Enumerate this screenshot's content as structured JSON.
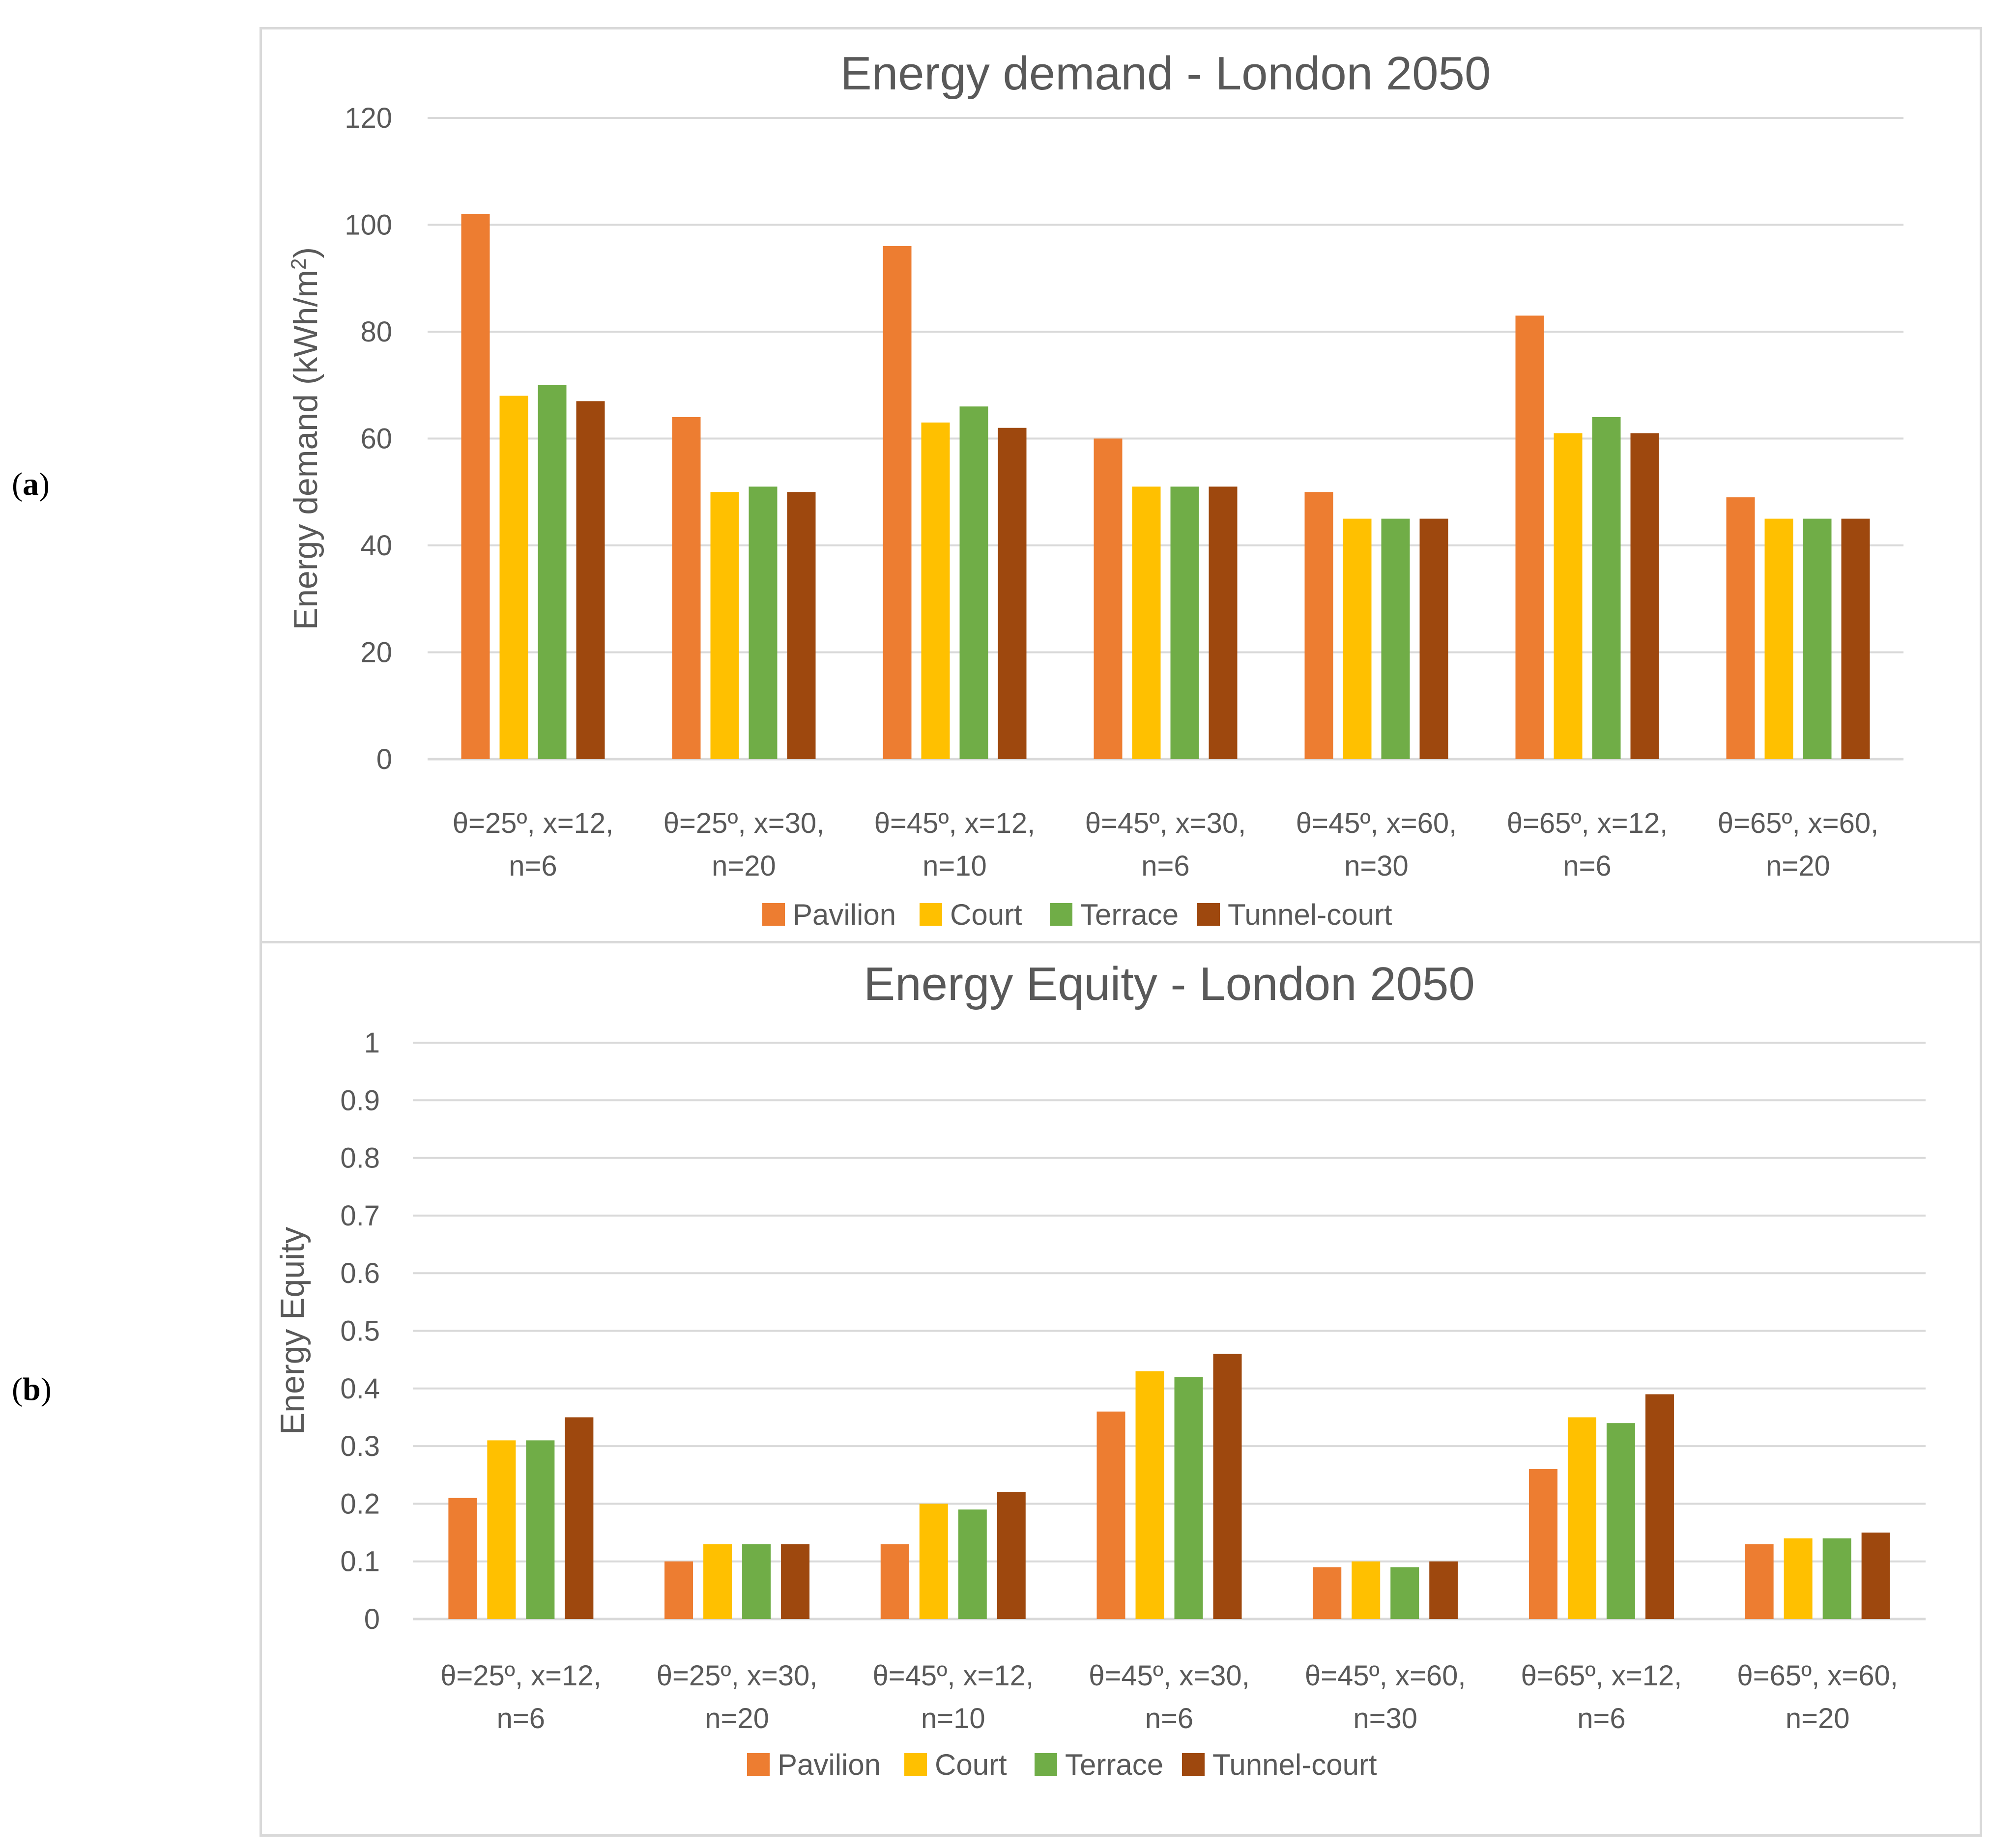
{
  "panels": [
    {
      "label": "a"
    },
    {
      "label": "b"
    }
  ],
  "colors": {
    "Pavilion": "#ed7d31",
    "Court": "#ffc000",
    "Terrace": "#70ad47",
    "Tunnel-court": "#9e480e",
    "grid": "#d9d9d9",
    "text": "#595959"
  },
  "chart_data": [
    {
      "type": "bar",
      "title": "Energy demand - London 2050",
      "xlabel": "",
      "ylabel": "Energy demand (kWh/m",
      "ylabel_sup": "2",
      "ylabel_close": ")",
      "ylim": [
        0,
        120
      ],
      "yticks": [
        "0",
        "20",
        "40",
        "60",
        "80",
        "100",
        "120"
      ],
      "categories": [
        [
          "θ=25º, x=12,",
          "n=6"
        ],
        [
          "θ=25º, x=30,",
          "n=20"
        ],
        [
          "θ=45º, x=12,",
          "n=10"
        ],
        [
          "θ=45º, x=30,",
          "n=6"
        ],
        [
          "θ=45º, x=60,",
          "n=30"
        ],
        [
          "θ=65º, x=12,",
          "n=6"
        ],
        [
          "θ=65º, x=60,",
          "n=20"
        ]
      ],
      "series": [
        {
          "name": "Pavilion",
          "values": [
            102,
            64,
            96,
            60,
            50,
            83,
            49
          ]
        },
        {
          "name": "Court",
          "values": [
            68,
            50,
            63,
            51,
            45,
            61,
            45
          ]
        },
        {
          "name": "Terrace",
          "values": [
            70,
            51,
            66,
            51,
            45,
            64,
            45
          ]
        },
        {
          "name": "Tunnel-court",
          "values": [
            67,
            50,
            62,
            51,
            45,
            61,
            45
          ]
        }
      ],
      "grid": true,
      "legend": "bottom"
    },
    {
      "type": "bar",
      "title": "Energy Equity - London 2050",
      "xlabel": "",
      "ylabel": "Energy Equity",
      "ylim": [
        0,
        1
      ],
      "yticks": [
        "0",
        "0.1",
        "0.2",
        "0.3",
        "0.4",
        "0.5",
        "0.6",
        "0.7",
        "0.8",
        "0.9",
        "1"
      ],
      "categories": [
        [
          "θ=25º, x=12,",
          "n=6"
        ],
        [
          "θ=25º, x=30,",
          "n=20"
        ],
        [
          "θ=45º, x=12,",
          "n=10"
        ],
        [
          "θ=45º, x=30,",
          "n=6"
        ],
        [
          "θ=45º, x=60,",
          "n=30"
        ],
        [
          "θ=65º, x=12,",
          "n=6"
        ],
        [
          "θ=65º, x=60,",
          "n=20"
        ]
      ],
      "series": [
        {
          "name": "Pavilion",
          "values": [
            0.21,
            0.1,
            0.13,
            0.36,
            0.09,
            0.26,
            0.13
          ]
        },
        {
          "name": "Court",
          "values": [
            0.31,
            0.13,
            0.2,
            0.43,
            0.1,
            0.35,
            0.14
          ]
        },
        {
          "name": "Terrace",
          "values": [
            0.31,
            0.13,
            0.19,
            0.42,
            0.09,
            0.34,
            0.14
          ]
        },
        {
          "name": "Tunnel-court",
          "values": [
            0.35,
            0.13,
            0.22,
            0.46,
            0.1,
            0.39,
            0.15
          ]
        }
      ],
      "grid": true,
      "legend": "bottom"
    }
  ]
}
